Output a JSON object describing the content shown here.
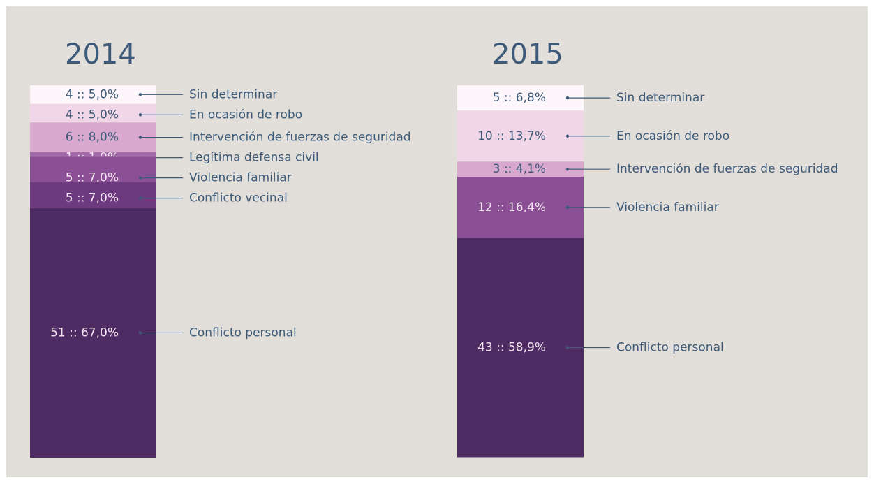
{
  "chart_data": [
    {
      "type": "stacked-bar",
      "title": "2014",
      "ylim": [
        0,
        100
      ],
      "categories": [
        "Sin determinar",
        "En ocasión de robo",
        "Intervención de fuerzas de seguridad",
        "Legítima defensa civil",
        "Violencia familiar",
        "Conflicto vecinal",
        "Conflicto personal"
      ],
      "values": [
        5.0,
        5.0,
        8.0,
        1.0,
        7.0,
        7.0,
        67.0
      ],
      "counts": [
        4,
        4,
        6,
        1,
        5,
        5,
        51
      ],
      "value_labels": [
        "4 :: 5,0%",
        "4 :: 5,0%",
        "6 :: 8,0%",
        "1 :: 1,0%",
        "5 :: 7,0%",
        "5 :: 7,0%",
        "51 :: 67,0%"
      ],
      "colors": [
        "#fdf6fa",
        "#f1d6e7",
        "#d8a8cf",
        "#a36ba9",
        "#8a4f95",
        "#6d3a80",
        "#4f2b63"
      ]
    },
    {
      "type": "stacked-bar",
      "title": "2015",
      "ylim": [
        0,
        100
      ],
      "categories": [
        "Sin determinar",
        "En ocasión de robo",
        "Intervención de fuerzas de seguridad",
        "Violencia familiar",
        "Conflicto personal"
      ],
      "values": [
        6.8,
        13.7,
        4.1,
        16.4,
        58.9
      ],
      "counts": [
        5,
        10,
        3,
        12,
        43
      ],
      "value_labels": [
        "5 :: 6,8%",
        "10 :: 13,7%",
        "3 :: 4,1%",
        "12 :: 16,4%",
        "43 :: 58,9%"
      ],
      "colors": [
        "#fdf6fa",
        "#f1d6e7",
        "#d8a8cf",
        "#8a4f95",
        "#4f2b63"
      ]
    }
  ]
}
